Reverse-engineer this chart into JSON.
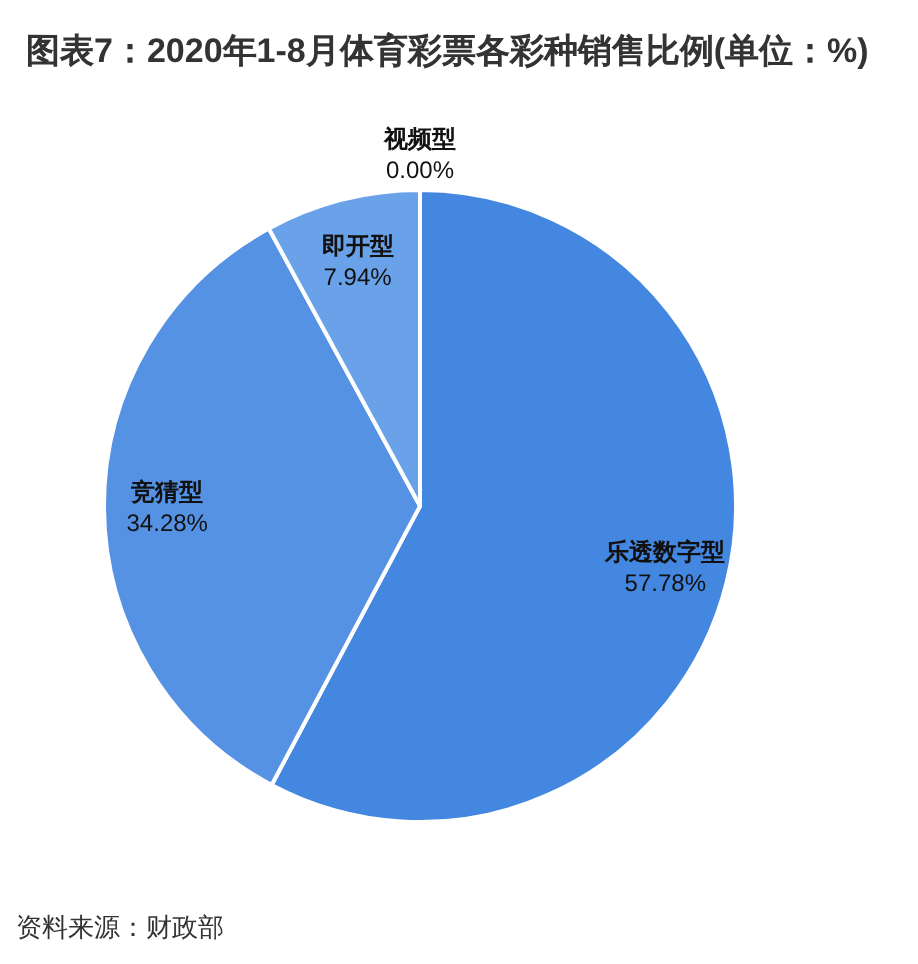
{
  "chart_data": {
    "type": "pie",
    "title": "图表7：2020年1-8月体育彩票各彩种销售比例(单位：%)",
    "categories": [
      "乐透数字型",
      "竞猜型",
      "即开型",
      "视频型"
    ],
    "values": [
      57.78,
      34.28,
      7.94,
      0.0
    ],
    "colors": [
      "#4487e0",
      "#5592e3",
      "#6aa2ea",
      "#7fb0ee"
    ],
    "value_labels": [
      "57.78%",
      "34.28%",
      "7.94%",
      "0.00%"
    ],
    "annotations": [
      "资料来源：财政部"
    ]
  }
}
